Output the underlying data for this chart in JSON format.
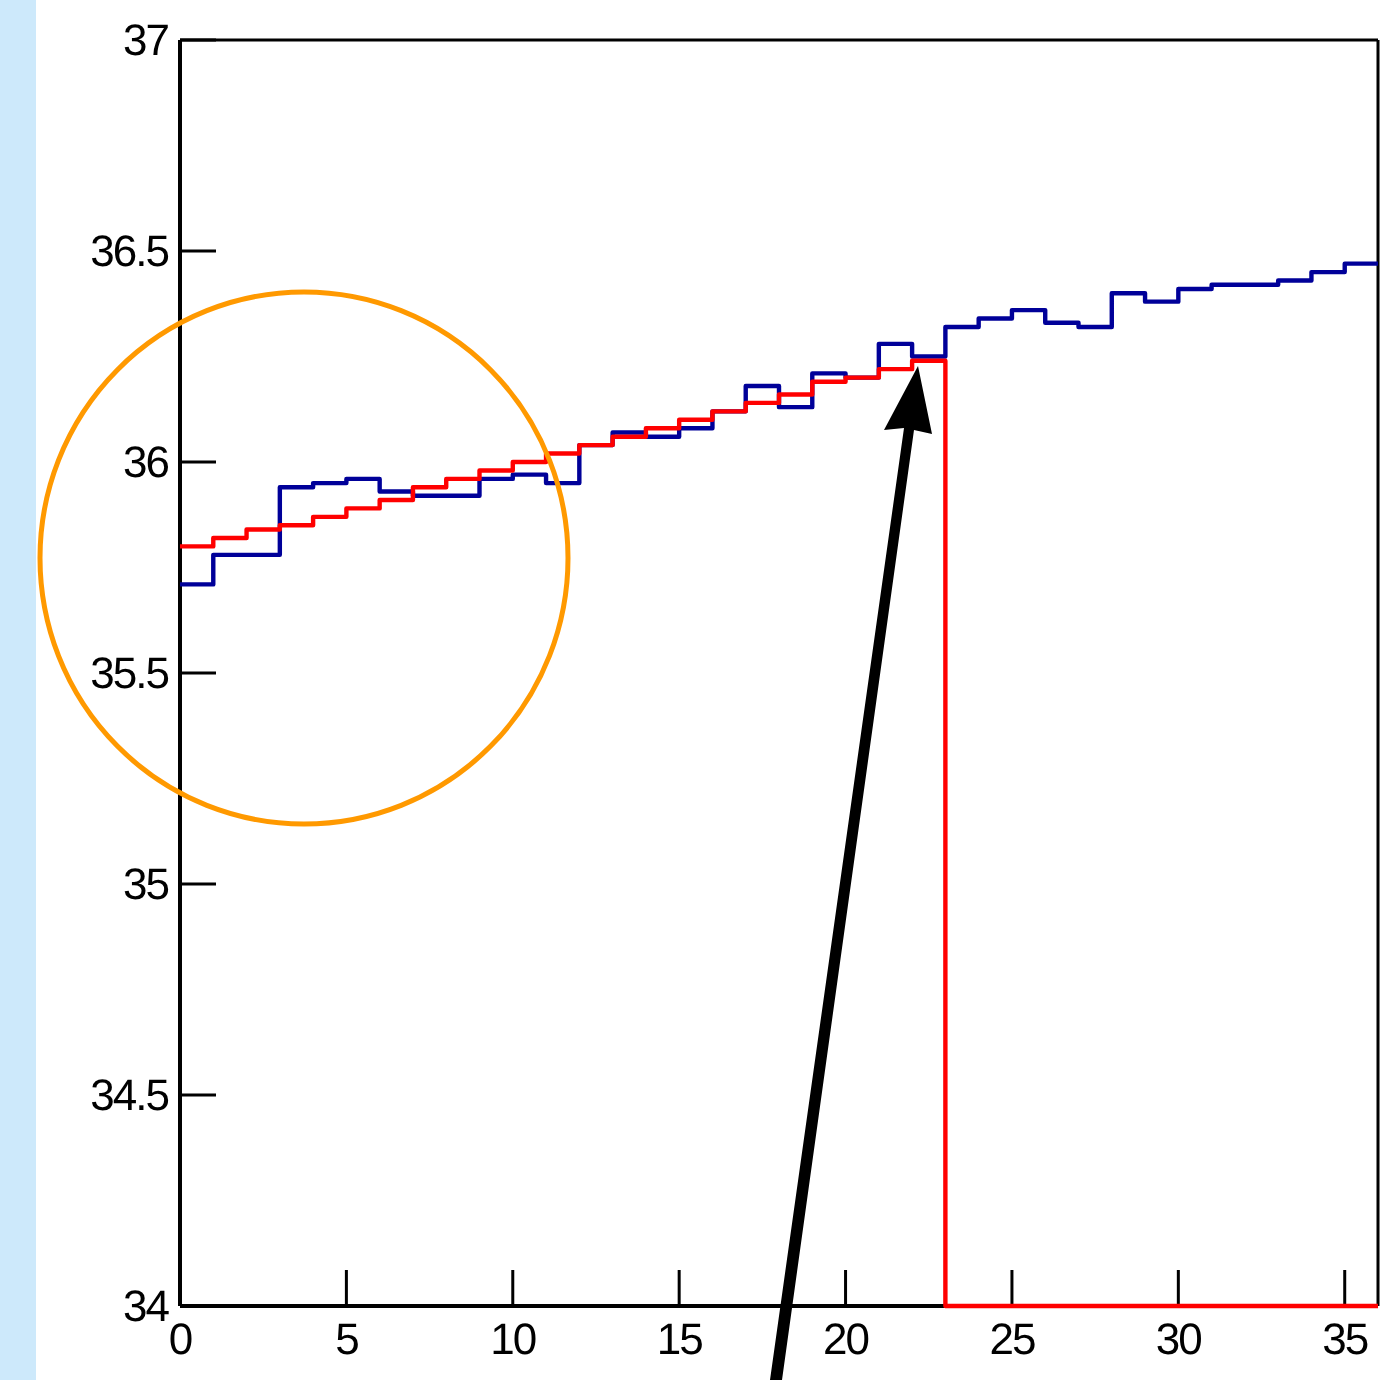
{
  "chart_data": {
    "type": "step",
    "series": [
      {
        "color": "#000099",
        "x": [
          0,
          1,
          2,
          3,
          4,
          5,
          6,
          7,
          8,
          9,
          10,
          11,
          12,
          13,
          14,
          15,
          16,
          17,
          18,
          19,
          20,
          21,
          22,
          23,
          24,
          25,
          26,
          27,
          28,
          29,
          30,
          31,
          32,
          33,
          34,
          35,
          36
        ],
        "values": [
          35.71,
          35.78,
          35.78,
          35.94,
          35.95,
          35.96,
          35.93,
          35.92,
          35.92,
          35.96,
          35.97,
          35.95,
          36.04,
          36.07,
          36.06,
          36.08,
          36.12,
          36.18,
          36.13,
          36.21,
          36.2,
          36.28,
          36.25,
          36.32,
          36.34,
          36.36,
          36.33,
          36.32,
          36.4,
          36.38,
          36.41,
          36.42,
          36.42,
          36.43,
          36.45,
          36.47,
          36.47
        ]
      },
      {
        "color": "#ff0000",
        "x": [
          0,
          1,
          2,
          3,
          4,
          5,
          6,
          7,
          8,
          9,
          10,
          11,
          12,
          13,
          14,
          15,
          16,
          17,
          18,
          19,
          20,
          21,
          22,
          23,
          24,
          25,
          26,
          27,
          28,
          29,
          30,
          31,
          32,
          33,
          34,
          35,
          36
        ],
        "values": [
          35.8,
          35.82,
          35.84,
          35.85,
          35.87,
          35.89,
          35.91,
          35.94,
          35.96,
          35.98,
          36.0,
          36.02,
          36.04,
          36.06,
          36.08,
          36.1,
          36.12,
          36.14,
          36.16,
          36.19,
          36.2,
          36.22,
          36.24,
          34,
          34,
          34,
          34,
          34,
          34,
          34,
          34,
          34,
          34,
          34,
          34,
          34,
          34
        ]
      }
    ],
    "xlim": [
      0,
      36
    ],
    "ylim": [
      34,
      37
    ],
    "xticks": [
      0,
      5,
      10,
      15,
      20,
      25,
      30,
      35
    ],
    "yticks": [
      34,
      34.5,
      35,
      35.5,
      36,
      36.5,
      37
    ],
    "grid": false
  }
}
